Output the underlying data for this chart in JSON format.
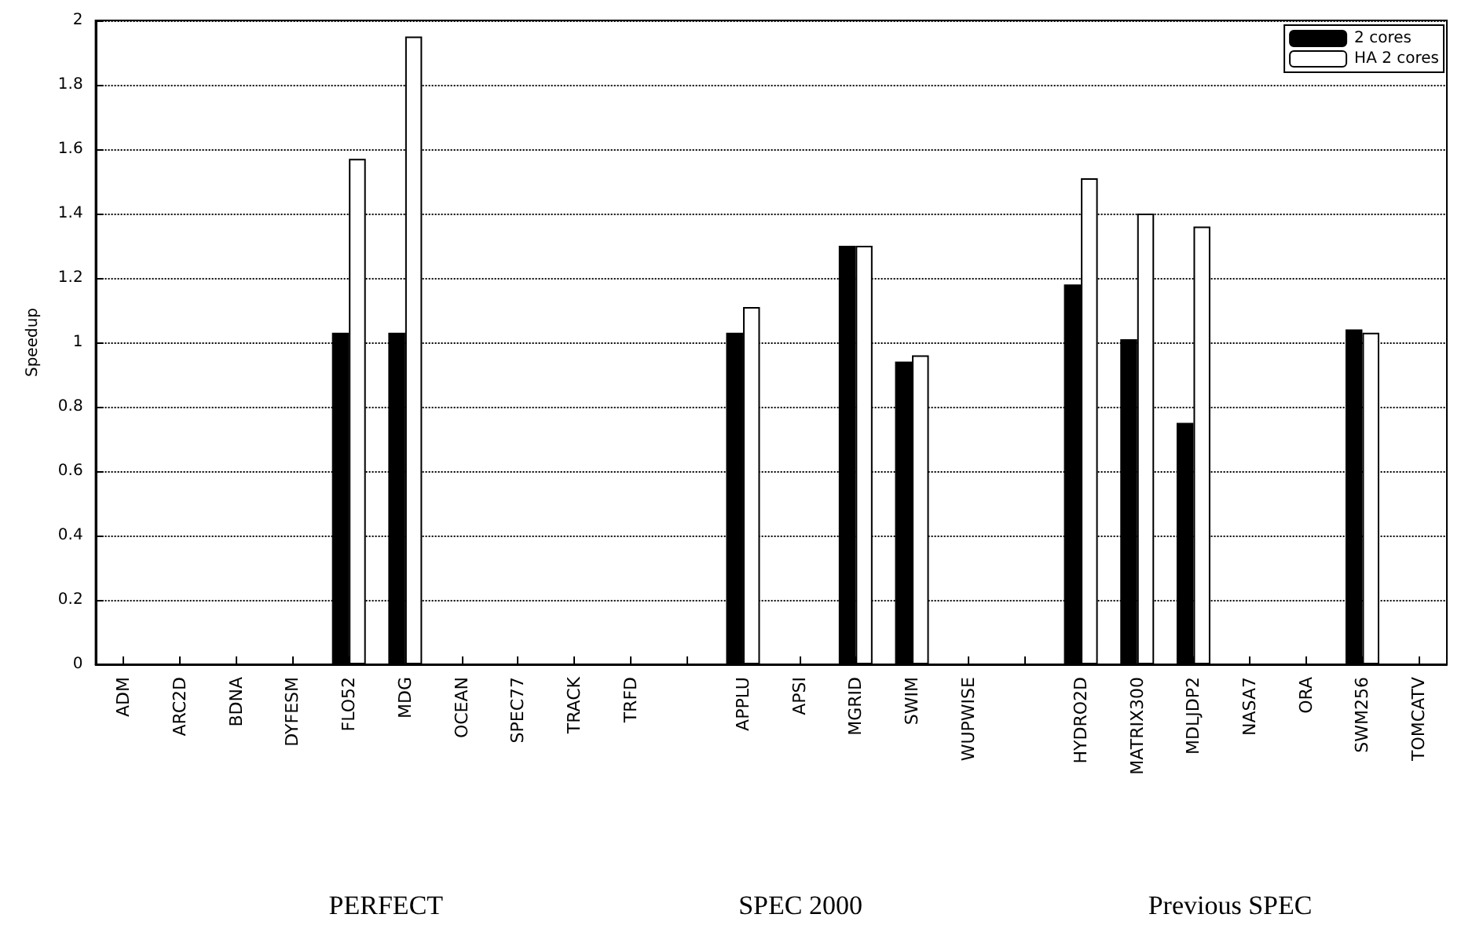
{
  "chart_data": {
    "type": "bar",
    "ylabel": "Speedup",
    "categories": [
      "ADM",
      "ARC2D",
      "BDNA",
      "DYFESM",
      "FLO52",
      "MDG",
      "OCEAN",
      "SPEC77",
      "TRACK",
      "TRFD",
      null,
      "APPLU",
      "APSI",
      "MGRID",
      "SWIM",
      "WUPWISE",
      null,
      "HYDRO2D",
      "MATRIX300",
      "MDLJDP2",
      "NASA7",
      "ORA",
      "SWM256",
      "TOMCATV"
    ],
    "series": [
      {
        "name": "2 cores",
        "color": "#000000",
        "values": [
          0,
          0,
          0,
          0,
          1.03,
          1.03,
          0,
          0,
          0,
          0,
          null,
          1.03,
          0,
          1.3,
          0.94,
          0,
          null,
          1.18,
          1.01,
          0.75,
          0,
          0,
          1.04,
          0
        ]
      },
      {
        "name": "HA 2 cores",
        "color": "#ffffff",
        "values": [
          0,
          0,
          0,
          0,
          1.57,
          1.95,
          0,
          0,
          0,
          0,
          null,
          1.11,
          0,
          1.3,
          0.96,
          0,
          null,
          1.51,
          1.4,
          1.36,
          0,
          0,
          1.03,
          0
        ]
      }
    ],
    "ylim": [
      0,
      2
    ],
    "yticks": [
      0,
      0.2,
      0.4,
      0.6,
      0.8,
      1,
      1.2,
      1.4,
      1.6,
      1.8,
      2
    ],
    "grid": "y",
    "legend": "top right",
    "annotations": [
      "PERFECT",
      "SPEC 2000",
      "Previous SPEC"
    ]
  }
}
